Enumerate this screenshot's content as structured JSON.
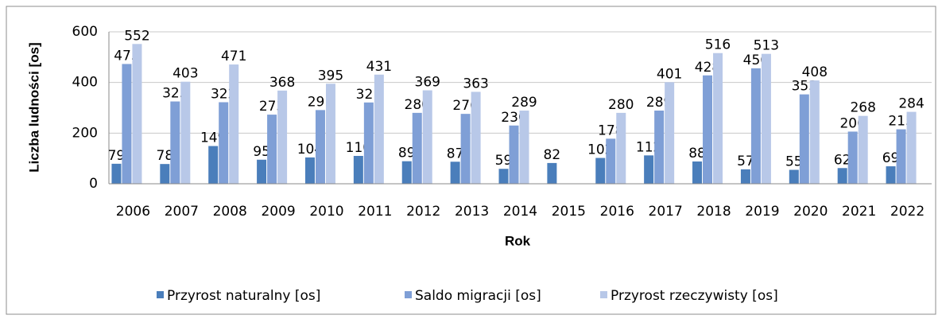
{
  "chart_data": {
    "type": "bar",
    "y_label": "Liczba ludności [os]",
    "x_label": "Rok",
    "categories": [
      "2006",
      "2007",
      "2008",
      "2009",
      "2010",
      "2011",
      "2012",
      "2013",
      "2014",
      "2015",
      "2016",
      "2017",
      "2018",
      "2019",
      "2020",
      "2021",
      "2022"
    ],
    "series": [
      {
        "name": "Przyrost naturalny [os]",
        "color": "#4a7ebb",
        "values": [
          79,
          78,
          149,
          95,
          104,
          110,
          89,
          87,
          59,
          82,
          102,
          112,
          88,
          57,
          55,
          62,
          69
        ]
      },
      {
        "name": "Saldo migracji [os]",
        "color": "#7f9fd6",
        "values": [
          473,
          325,
          322,
          273,
          291,
          321,
          280,
          276,
          230,
          null,
          178,
          289,
          428,
          456,
          353,
          206,
          215
        ]
      },
      {
        "name": "Przyrost rzeczywisty [os]",
        "color": "#b8c8e8",
        "values": [
          552,
          403,
          471,
          368,
          395,
          431,
          369,
          363,
          289,
          null,
          280,
          401,
          516,
          513,
          408,
          268,
          284
        ]
      }
    ],
    "ylim": [
      0,
      600
    ],
    "yticks": [
      0,
      200,
      400,
      600
    ],
    "grid": true,
    "legend": "bottom"
  }
}
